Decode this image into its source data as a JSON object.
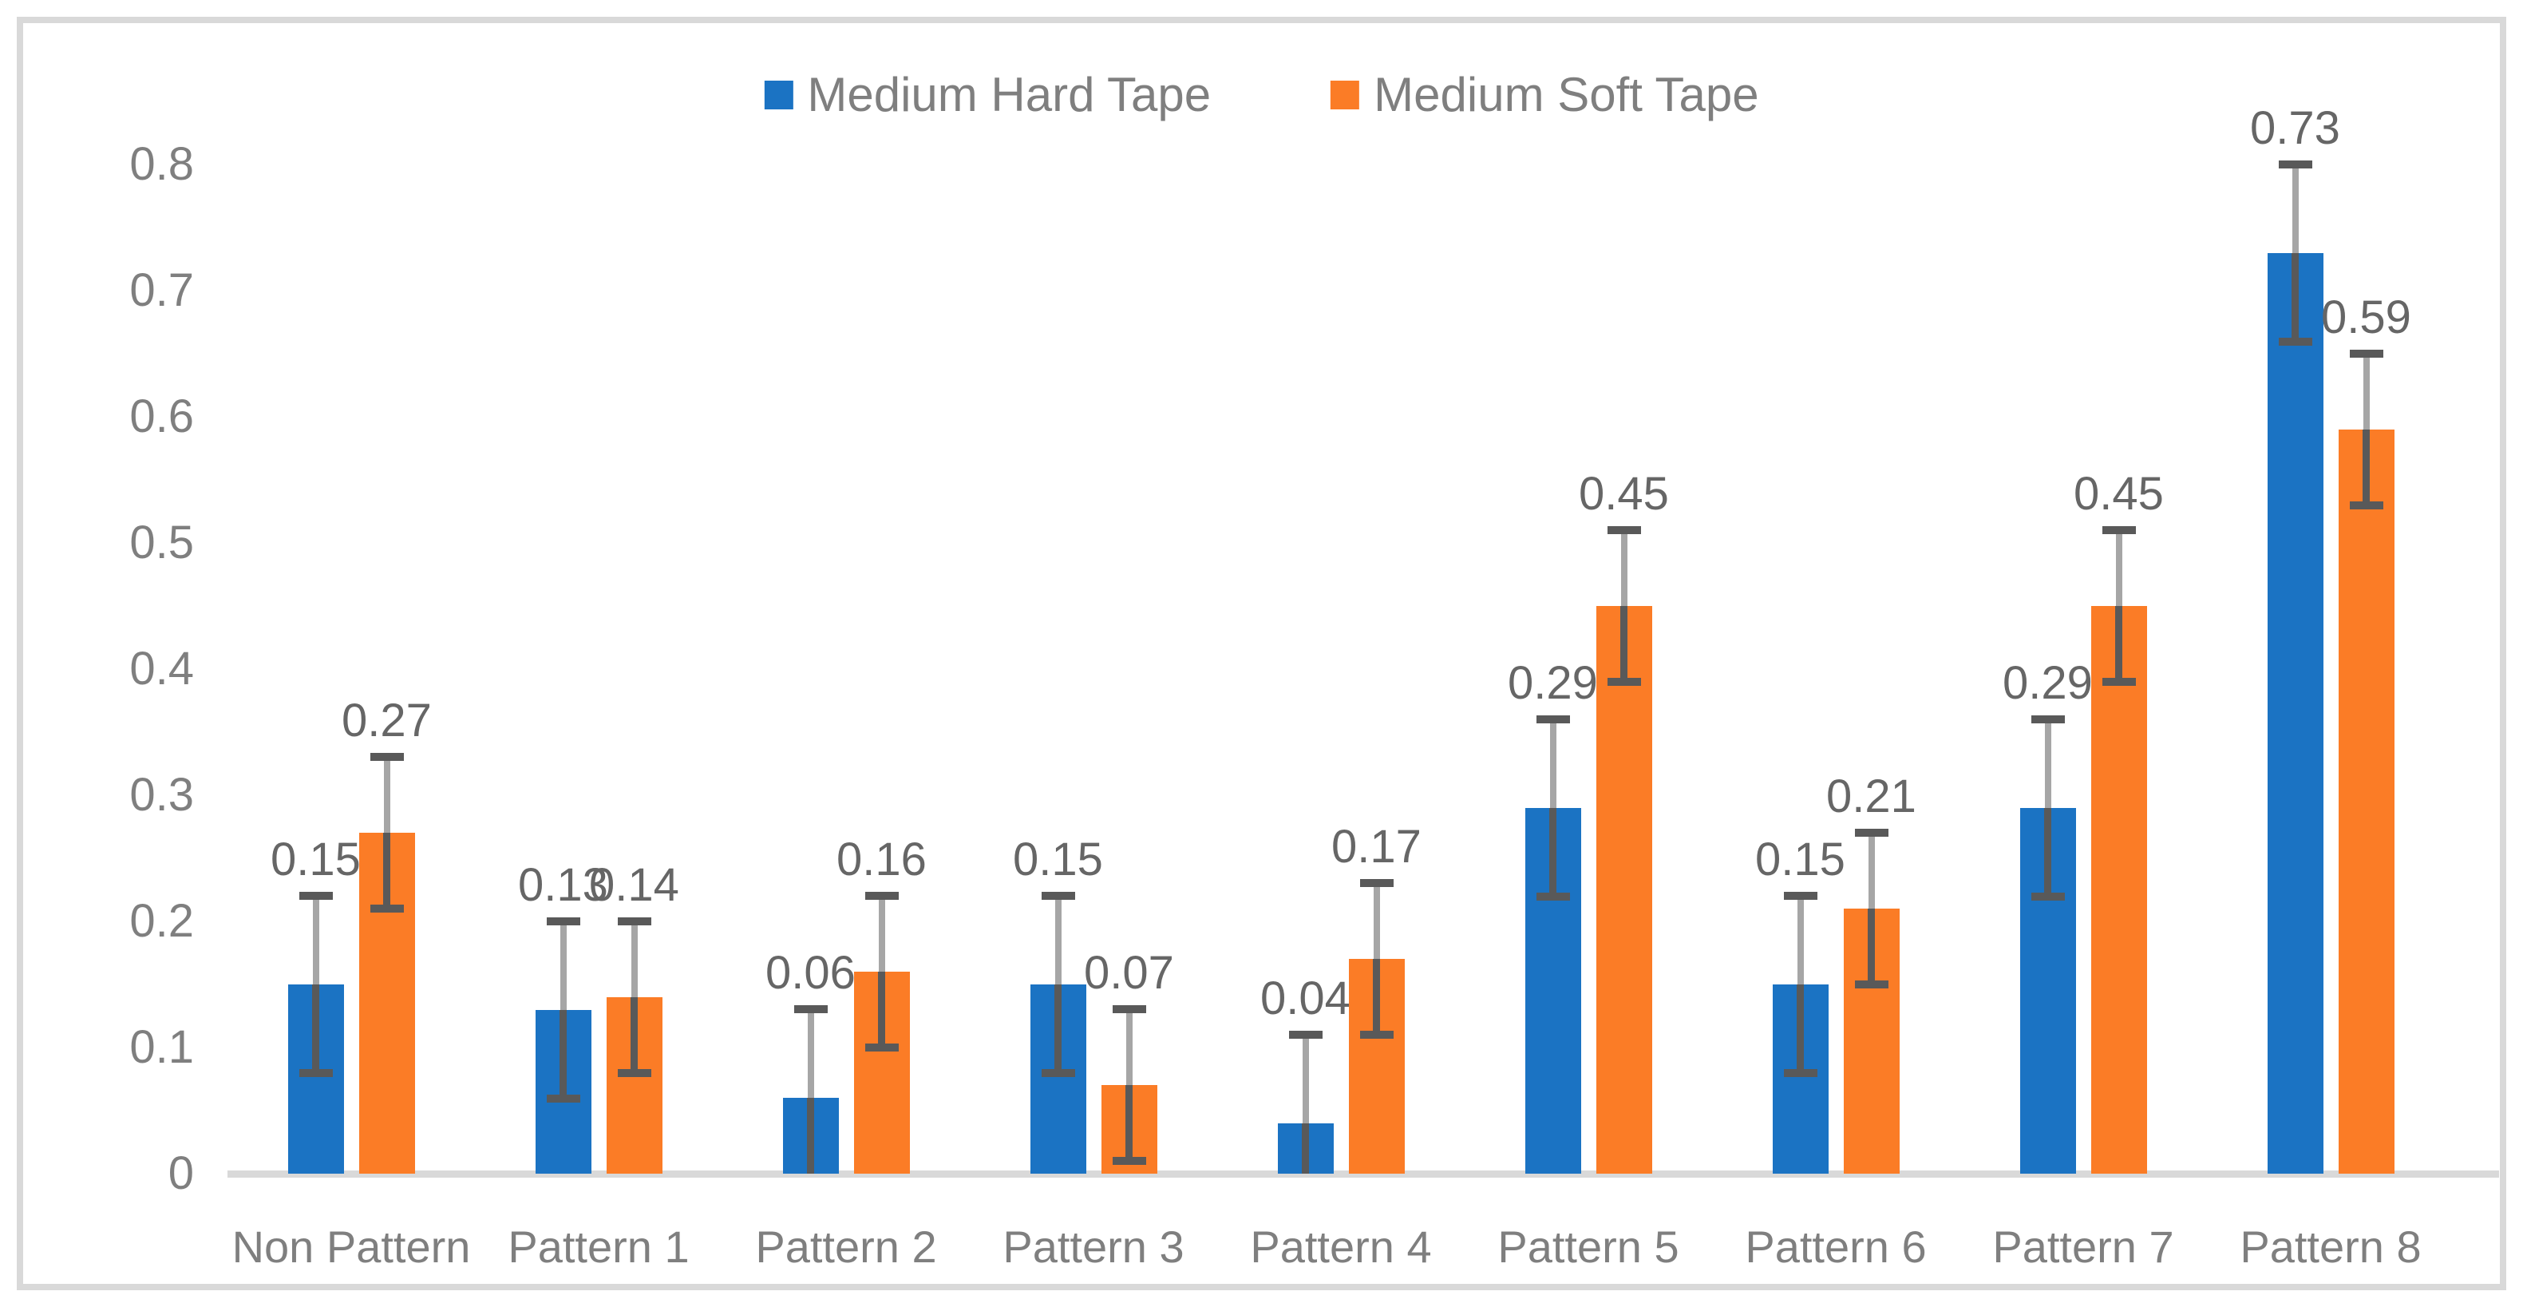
{
  "chart_data": {
    "type": "bar",
    "title": "",
    "categories": [
      "Non Pattern",
      "Pattern 1",
      "Pattern 2",
      "Pattern 3",
      "Pattern 4",
      "Pattern 5",
      "Pattern 6",
      "Pattern 7",
      "Pattern 8"
    ],
    "series": [
      {
        "name": "Medium Hard Tape",
        "color": "#1B73C3",
        "values": [
          0.15,
          0.13,
          0.06,
          0.15,
          0.04,
          0.29,
          0.15,
          0.29,
          0.73
        ],
        "labels": [
          "0.15",
          "0.13",
          "0.06",
          "0.15",
          "0.04",
          "0.29",
          "0.15",
          "0.29",
          "0.73"
        ],
        "error": 0.07
      },
      {
        "name": "Medium Soft Tape",
        "color": "#FB7C26",
        "values": [
          0.27,
          0.14,
          0.16,
          0.07,
          0.17,
          0.45,
          0.21,
          0.45,
          0.59
        ],
        "labels": [
          "0.27",
          "0.14",
          "0.16",
          "0.07",
          "0.17",
          "0.45",
          "0.21",
          "0.45",
          "0.59"
        ],
        "error": 0.06
      }
    ],
    "y_axis": {
      "min": 0,
      "max": 0.8,
      "ticks": [
        {
          "label": "0.8",
          "value": 0.8
        },
        {
          "label": "0.7",
          "value": 0.7
        },
        {
          "label": "0.6",
          "value": 0.6
        },
        {
          "label": "0.5",
          "value": 0.5
        },
        {
          "label": "0.4",
          "value": 0.4
        },
        {
          "label": "0.3",
          "value": 0.3
        },
        {
          "label": "0.2",
          "value": 0.2
        },
        {
          "label": "0.1",
          "value": 0.1
        },
        {
          "label": "0",
          "value": 0.0
        }
      ]
    },
    "grid": false,
    "legend_position": "top-center",
    "colors": {
      "frame": "#D9D9D9",
      "axis_line": "#D9D9D9",
      "error_line": "#A6A6A6",
      "error_cap": "#595959",
      "tick_text": "#7F7F7F",
      "category_text": "#7F7F7F",
      "legend_text": "#7F7F7F",
      "data_label_text": "#666666"
    }
  }
}
